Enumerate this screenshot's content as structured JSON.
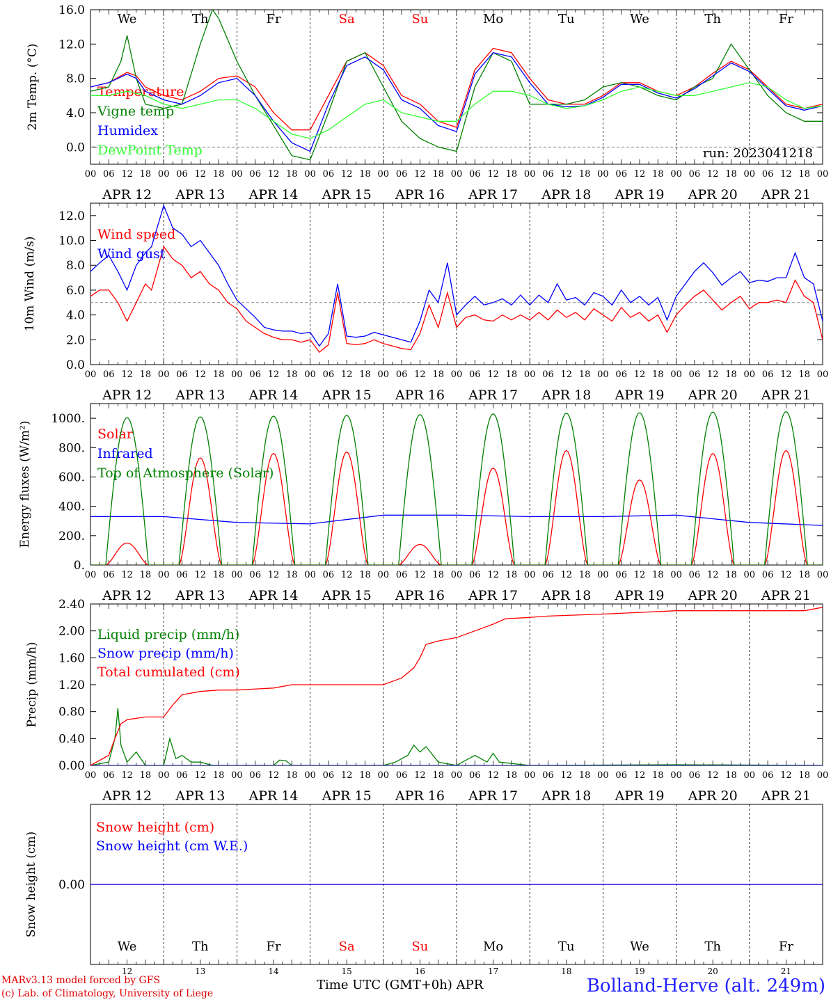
{
  "chart_data": [
    {
      "type": "line",
      "ylabel": "2m Temp. (°C)",
      "ylim": [
        -2,
        16
      ],
      "yticks": [
        "16.0",
        "12.0",
        "8.0",
        "4.0",
        "0.0"
      ],
      "reference_line": 0,
      "annotation": "run: 2023041218",
      "series": [
        {
          "name": "Temperature",
          "color": "#ff0000",
          "x": [
            0,
            6,
            12,
            15,
            18,
            24,
            30,
            36,
            42,
            48,
            54,
            60,
            66,
            72,
            78,
            84,
            90,
            96,
            102,
            108,
            114,
            120,
            126,
            132,
            138,
            144,
            150,
            156,
            162,
            168,
            174,
            180,
            186,
            192,
            198,
            204,
            210,
            216,
            222,
            228,
            234,
            240
          ],
          "values": [
            7,
            7.5,
            8.7,
            8.3,
            7,
            6,
            5.5,
            6.5,
            8,
            8.3,
            7,
            4,
            2,
            2,
            6,
            10,
            11,
            9.5,
            6,
            5,
            3,
            2.3,
            9,
            11.5,
            11,
            8,
            5.5,
            5,
            5,
            6,
            7.5,
            7.5,
            6.5,
            6,
            7,
            8.6,
            10,
            9,
            7,
            5,
            4.5,
            5
          ]
        },
        {
          "name": "Vigne temp",
          "color": "#008000",
          "x": [
            0,
            6,
            10,
            12,
            15,
            18,
            24,
            30,
            36,
            40,
            42,
            48,
            54,
            60,
            66,
            72,
            78,
            84,
            90,
            96,
            102,
            108,
            114,
            120,
            126,
            132,
            138,
            144,
            150,
            156,
            162,
            168,
            174,
            180,
            186,
            192,
            198,
            204,
            210,
            216,
            222,
            228,
            234,
            240
          ],
          "values": [
            6.5,
            7,
            10,
            13,
            8,
            5,
            4.5,
            5,
            12,
            16,
            15,
            10,
            6,
            2.5,
            -1,
            -1.5,
            4,
            10,
            11,
            7,
            3,
            1,
            0,
            -0.5,
            7,
            11,
            10,
            5,
            5,
            5,
            5.5,
            7,
            7.5,
            7,
            6,
            5.5,
            7,
            8,
            12,
            9,
            6,
            4,
            3,
            3
          ]
        },
        {
          "name": "Humidex",
          "color": "#0000ff",
          "x": [
            0,
            6,
            12,
            15,
            18,
            24,
            30,
            36,
            42,
            48,
            54,
            60,
            66,
            72,
            78,
            84,
            90,
            96,
            102,
            108,
            114,
            120,
            126,
            132,
            138,
            144,
            150,
            156,
            162,
            168,
            174,
            180,
            186,
            192,
            198,
            204,
            210,
            216,
            222,
            228,
            234,
            240
          ],
          "values": [
            7,
            7.5,
            8.5,
            8,
            6.5,
            5.5,
            5,
            6,
            7.5,
            8,
            6,
            3,
            0.5,
            -0.5,
            5,
            9.5,
            10.5,
            9,
            5.5,
            4.5,
            2.5,
            1.8,
            8.5,
            11,
            10.5,
            7.5,
            5,
            4.7,
            4.8,
            5.8,
            7.3,
            7.3,
            6.3,
            5.7,
            6.8,
            8.3,
            9.8,
            8.8,
            6.8,
            4.8,
            4.3,
            4.8
          ]
        },
        {
          "name": "DewPoint Temp",
          "color": "#33ff33",
          "x": [
            0,
            6,
            12,
            18,
            24,
            30,
            36,
            42,
            48,
            54,
            60,
            66,
            72,
            78,
            84,
            90,
            96,
            102,
            108,
            114,
            120,
            126,
            132,
            138,
            144,
            150,
            156,
            162,
            168,
            174,
            180,
            186,
            192,
            198,
            204,
            210,
            216,
            222,
            228,
            234,
            240
          ],
          "values": [
            6,
            6,
            6.5,
            6,
            5,
            4.5,
            5,
            5.5,
            5.5,
            4.5,
            3,
            1.5,
            1,
            2,
            3.5,
            5,
            5.5,
            4,
            3.5,
            3,
            3,
            5,
            6.5,
            6.5,
            6,
            5,
            4.5,
            4.8,
            5.5,
            6.5,
            7,
            6.5,
            6,
            6,
            6.5,
            7,
            7.5,
            7,
            5.5,
            4.5,
            4.8
          ]
        }
      ]
    },
    {
      "type": "line",
      "ylabel": "10m Wind (m/s)",
      "ylim": [
        0,
        13
      ],
      "yticks": [
        "12.0",
        "10.0",
        "8.0",
        "6.0",
        "4.0",
        "2.0",
        "0.0"
      ],
      "reference_line": 5,
      "series": [
        {
          "name": "Wind speed",
          "color": "#ff0000",
          "x": [
            0,
            3,
            6,
            9,
            12,
            15,
            18,
            20,
            24,
            27,
            30,
            33,
            36,
            39,
            42,
            45,
            48,
            51,
            54,
            57,
            60,
            63,
            66,
            69,
            72,
            75,
            78,
            81,
            84,
            87,
            90,
            93,
            96,
            99,
            102,
            105,
            108,
            111,
            114,
            117,
            120,
            123,
            126,
            129,
            132,
            135,
            138,
            141,
            144,
            147,
            150,
            153,
            156,
            159,
            162,
            165,
            168,
            171,
            174,
            177,
            180,
            183,
            186,
            189,
            192,
            195,
            198,
            201,
            204,
            207,
            210,
            213,
            216,
            219,
            222,
            225,
            228,
            231,
            234,
            237,
            240
          ],
          "values": [
            5.5,
            6,
            6,
            5,
            3.5,
            5,
            6.5,
            6,
            9.5,
            8.5,
            8,
            7,
            7.5,
            6.5,
            6,
            5,
            4.5,
            3.5,
            3,
            2.5,
            2.2,
            2,
            2,
            1.8,
            2,
            1,
            1.6,
            5.8,
            1.7,
            1.6,
            1.7,
            2,
            1.7,
            1.5,
            1.3,
            1.2,
            2.5,
            4.8,
            3,
            5.8,
            3,
            3.8,
            4,
            3.6,
            3.5,
            4,
            3.6,
            4,
            3.6,
            4.2,
            3.6,
            4.4,
            3.8,
            4.2,
            3.6,
            4.5,
            4,
            3.5,
            4.6,
            3.8,
            4.2,
            3.5,
            4,
            2.6,
            4,
            4.8,
            5.5,
            6,
            5.2,
            4.4,
            5,
            5.5,
            4.5,
            5,
            5,
            5.2,
            5,
            6.8,
            5.5,
            5,
            2
          ]
        },
        {
          "name": "Wind gust",
          "color": "#0000ff",
          "x": [
            0,
            3,
            6,
            9,
            12,
            15,
            18,
            20,
            24,
            27,
            30,
            33,
            36,
            39,
            42,
            45,
            48,
            51,
            54,
            57,
            60,
            63,
            66,
            69,
            72,
            75,
            78,
            81,
            84,
            87,
            90,
            93,
            96,
            99,
            102,
            105,
            108,
            111,
            114,
            117,
            120,
            123,
            126,
            129,
            132,
            135,
            138,
            141,
            144,
            147,
            150,
            153,
            156,
            159,
            162,
            165,
            168,
            171,
            174,
            177,
            180,
            183,
            186,
            189,
            192,
            195,
            198,
            201,
            204,
            207,
            210,
            213,
            216,
            219,
            222,
            225,
            228,
            231,
            234,
            237,
            240
          ],
          "values": [
            7.5,
            8.2,
            8.8,
            7.5,
            6,
            8,
            9,
            9.5,
            12.8,
            11,
            10.5,
            9.5,
            10,
            9,
            8,
            6.5,
            5.2,
            4.5,
            3.8,
            3,
            2.8,
            2.7,
            2.7,
            2.5,
            2.6,
            1.5,
            2.5,
            6.5,
            2.3,
            2.2,
            2.3,
            2.6,
            2.4,
            2.2,
            2,
            1.8,
            3.5,
            6,
            5,
            8.2,
            4,
            4.8,
            5.5,
            4.8,
            5,
            5.3,
            4.8,
            5.6,
            4.8,
            5.6,
            5,
            6.5,
            5.2,
            5.4,
            4.8,
            5.8,
            5.5,
            4.8,
            6,
            5,
            5.5,
            4.8,
            5.4,
            3.6,
            5.5,
            6.5,
            7.5,
            8.2,
            7.4,
            6.4,
            7,
            7.5,
            6.6,
            6.8,
            6.7,
            7,
            7,
            9,
            7,
            6.5,
            3.5
          ]
        }
      ]
    },
    {
      "type": "line",
      "ylabel": "Energy fluxes (W/m²)",
      "ylim": [
        0,
        1100
      ],
      "yticks": [
        "1000.",
        "800.",
        "600.",
        "400.",
        "200.",
        "0."
      ],
      "series": [
        {
          "name": "Solar",
          "color": "#ff0000",
          "daily_peaks": [
            150,
            730,
            760,
            770,
            140,
            660,
            780,
            580,
            760,
            780
          ]
        },
        {
          "name": "Infrared",
          "color": "#0000ff",
          "x": [
            0,
            24,
            48,
            72,
            96,
            120,
            144,
            168,
            192,
            216,
            240
          ],
          "values": [
            330,
            330,
            290,
            280,
            340,
            340,
            330,
            330,
            340,
            290,
            270
          ]
        },
        {
          "name": "Top of Atmosphere (Solar)",
          "color": "#008000",
          "daily_peaks": [
            1005,
            1010,
            1015,
            1020,
            1025,
            1030,
            1035,
            1038,
            1042,
            1045
          ]
        }
      ]
    },
    {
      "type": "line",
      "ylabel": "Precip (mm/h)",
      "ylim": [
        0,
        2.4
      ],
      "yticks": [
        "2.40",
        "2.00",
        "1.60",
        "1.20",
        "0.80",
        "0.40",
        "0.00"
      ],
      "series": [
        {
          "name": "Liquid precip (mm/h)",
          "color": "#008000",
          "x": [
            0,
            6,
            8,
            9,
            10,
            12,
            15,
            18,
            24,
            26,
            28,
            30,
            33,
            36,
            40,
            48,
            60,
            62,
            64,
            66,
            72,
            96,
            100,
            104,
            106,
            108,
            110,
            114,
            120,
            124,
            126,
            128,
            130,
            132,
            134,
            140,
            144,
            192,
            240
          ],
          "values": [
            0,
            0.05,
            0.4,
            0.85,
            0.3,
            0.05,
            0.2,
            0,
            0,
            0.4,
            0.1,
            0.15,
            0.05,
            0.05,
            0,
            0,
            0,
            0.08,
            0.07,
            0,
            0,
            0,
            0.05,
            0.15,
            0.3,
            0.2,
            0.28,
            0.05,
            0,
            0.1,
            0.15,
            0.1,
            0.05,
            0.18,
            0.05,
            0.02,
            0,
            0.01,
            0
          ]
        },
        {
          "name": "Snow precip (mm/h)",
          "color": "#0000ff",
          "x": [
            0,
            240
          ],
          "values": [
            0,
            0
          ]
        },
        {
          "name": "Total cumulated (cm)",
          "color": "#ff0000",
          "x": [
            0,
            6,
            8,
            10,
            12,
            18,
            24,
            27,
            30,
            36,
            42,
            48,
            60,
            66,
            72,
            96,
            102,
            106,
            108,
            110,
            114,
            120,
            126,
            132,
            136,
            144,
            150,
            168,
            192,
            234,
            240
          ],
          "values": [
            0,
            0.15,
            0.4,
            0.62,
            0.68,
            0.72,
            0.72,
            0.9,
            1.05,
            1.1,
            1.12,
            1.12,
            1.15,
            1.2,
            1.2,
            1.2,
            1.3,
            1.45,
            1.6,
            1.8,
            1.85,
            1.9,
            2.0,
            2.1,
            2.18,
            2.2,
            2.22,
            2.25,
            2.3,
            2.3,
            2.35
          ]
        }
      ]
    },
    {
      "type": "line",
      "ylabel": "Snow height (cm)",
      "yticks": [
        "0.00"
      ],
      "series": [
        {
          "name": "Snow height (cm)",
          "color": "#ff0000",
          "x": [
            0,
            240
          ],
          "values": [
            0,
            0
          ]
        },
        {
          "name": "Snow height (cm W.E.)",
          "color": "#0000ff",
          "x": [
            0,
            240
          ],
          "values": [
            0,
            0
          ]
        }
      ]
    }
  ],
  "weekdays": [
    "We",
    "Th",
    "Fr",
    "Sa",
    "Su",
    "Mo",
    "Tu",
    "We",
    "Th",
    "Fr"
  ],
  "weekday_colors": [
    "#000000",
    "#000000",
    "#000000",
    "#ff0000",
    "#ff0000",
    "#000000",
    "#000000",
    "#000000",
    "#000000",
    "#000000"
  ],
  "date_labels": [
    "APR 12",
    "APR 13",
    "APR 14",
    "APR 15",
    "APR 16",
    "APR 17",
    "APR 18",
    "APR 19",
    "APR 20",
    "APR 21"
  ],
  "hour_labels": [
    "00",
    "06",
    "12",
    "18"
  ],
  "day_numbers": [
    "12",
    "13",
    "14",
    "15",
    "16",
    "17",
    "18",
    "19",
    "20",
    "21"
  ],
  "footer": {
    "credit_line1": "MARv3.13 model forced by GFS",
    "credit_line2": "(c) Lab. of Climatology, University of Liege",
    "x_axis_title": "Time UTC (GMT+0h) APR",
    "station": "Bolland-Herve (alt. 249m)"
  }
}
